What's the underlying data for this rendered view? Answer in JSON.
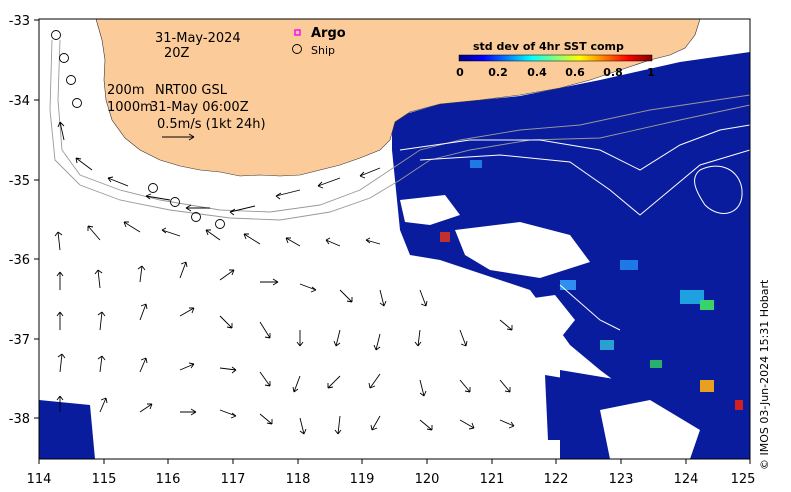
{
  "map": {
    "date_label": "31-May-2024",
    "time_label": "20Z",
    "contour_label_200m": "200m",
    "contour_label_1000m": "1000m",
    "source_label": "NRT00 GSL",
    "vector_time_label": "31-May 06:00Z",
    "scale_label": "0.5m/s (1kt 24h)",
    "x_ticks": [
      "114",
      "115",
      "116",
      "117",
      "118",
      "119",
      "120",
      "121",
      "122",
      "123",
      "124",
      "125"
    ],
    "y_ticks": [
      "-33",
      "-34",
      "-35",
      "-36",
      "-37",
      "-38"
    ],
    "x_range": [
      114,
      125
    ],
    "y_range": [
      -38.5,
      -33
    ],
    "x_axis_units": "degrees longitude E",
    "y_axis_units": "degrees latitude"
  },
  "legend": {
    "argo_label": "Argo",
    "ship_label": "Ship",
    "colorbar_title": "std dev of 4hr SST comp",
    "colorbar_ticks": [
      "0",
      "0.2",
      "0.4",
      "0.6",
      "0.8",
      "1"
    ],
    "colorbar_range": [
      0,
      1
    ],
    "colormap": "jet"
  },
  "footer": {
    "copyright": "© IMOS 03-Jun-2024 15:31 Hobart"
  },
  "colors": {
    "land": "#FCCB9A",
    "ocean_no_data": "#FFFFFF",
    "sst_low": "#00108F",
    "argo_marker": "#FF00FF",
    "contour": "#888888"
  }
}
